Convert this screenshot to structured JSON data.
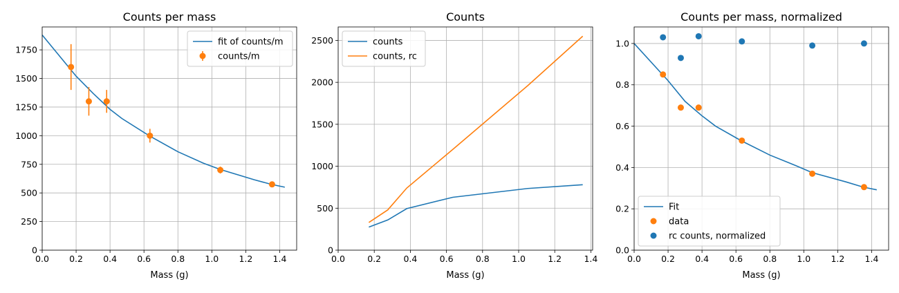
{
  "chart_data": [
    {
      "type": "scatter",
      "title": "Counts per mass",
      "xlabel": "Mass (g)",
      "ylabel": "",
      "xlim": [
        0,
        1.5
      ],
      "ylim": [
        0,
        1950
      ],
      "xticks": [
        0.0,
        0.2,
        0.4,
        0.6,
        0.8,
        1.0,
        1.2,
        1.4
      ],
      "yticks": [
        0,
        250,
        500,
        750,
        1000,
        1250,
        1500,
        1750
      ],
      "grid": true,
      "legend": "top-right",
      "series": [
        {
          "name": "fit of counts/m",
          "kind": "line",
          "color": "#1f77b4",
          "x": [
            0.0,
            0.2,
            0.3,
            0.4,
            0.47,
            0.63,
            0.8,
            0.95,
            1.05,
            1.25,
            1.35,
            1.43
          ],
          "y": [
            1880,
            1520,
            1370,
            1230,
            1150,
            1000,
            860,
            760,
            705,
            615,
            575,
            550
          ]
        },
        {
          "name": "counts/m",
          "kind": "errorbar",
          "color": "#ff7f0e",
          "x": [
            0.17,
            0.275,
            0.38,
            0.635,
            1.05,
            1.355
          ],
          "y": [
            1600,
            1300,
            1300,
            1000,
            700,
            575
          ],
          "yerr": [
            200,
            125,
            100,
            60,
            30,
            25
          ]
        }
      ]
    },
    {
      "type": "line",
      "title": "Counts",
      "xlabel": "Mass (g)",
      "ylabel": "",
      "xlim": [
        0,
        1.41
      ],
      "ylim": [
        0,
        2660
      ],
      "xticks": [
        0.0,
        0.2,
        0.4,
        0.6,
        0.8,
        1.0,
        1.2,
        1.4
      ],
      "yticks": [
        0,
        500,
        1000,
        1500,
        2000,
        2500
      ],
      "grid": true,
      "legend": "top-left",
      "series": [
        {
          "name": "counts",
          "kind": "line",
          "color": "#1f77b4",
          "x": [
            0.17,
            0.275,
            0.38,
            0.635,
            1.05,
            1.355
          ],
          "y": [
            275,
            360,
            495,
            630,
            735,
            780
          ]
        },
        {
          "name": "counts, rc",
          "kind": "line",
          "color": "#ff7f0e",
          "x": [
            0.17,
            0.275,
            0.38,
            0.635,
            1.05,
            1.355
          ],
          "y": [
            330,
            480,
            740,
            1200,
            1960,
            2550
          ]
        }
      ]
    },
    {
      "type": "scatter",
      "title": "Counts per mass, normalized",
      "xlabel": "Mass (g)",
      "ylabel": "",
      "xlim": [
        0,
        1.5
      ],
      "ylim": [
        0,
        1.08
      ],
      "xticks": [
        0.0,
        0.2,
        0.4,
        0.6,
        0.8,
        1.0,
        1.2,
        1.4
      ],
      "yticks": [
        0.0,
        0.2,
        0.4,
        0.6,
        0.8,
        1.0
      ],
      "grid": true,
      "legend": "bottom-left",
      "series": [
        {
          "name": "Fit",
          "kind": "line",
          "color": "#1f77b4",
          "x": [
            0.0,
            0.2,
            0.3,
            0.4,
            0.48,
            0.63,
            0.8,
            0.95,
            1.05,
            1.25,
            1.35,
            1.43
          ],
          "y": [
            1.0,
            0.82,
            0.72,
            0.65,
            0.6,
            0.53,
            0.46,
            0.41,
            0.375,
            0.33,
            0.305,
            0.292
          ]
        },
        {
          "name": "data",
          "kind": "scatter",
          "color": "#ff7f0e",
          "x": [
            0.17,
            0.275,
            0.38,
            0.635,
            1.05,
            1.355
          ],
          "y": [
            0.85,
            0.69,
            0.69,
            0.53,
            0.37,
            0.305
          ]
        },
        {
          "name": "rc counts, normalized",
          "kind": "scatter",
          "color": "#1f77b4",
          "x": [
            0.17,
            0.275,
            0.38,
            0.635,
            1.05,
            1.355
          ],
          "y": [
            1.03,
            0.93,
            1.035,
            1.01,
            0.99,
            1.0
          ]
        }
      ]
    }
  ]
}
